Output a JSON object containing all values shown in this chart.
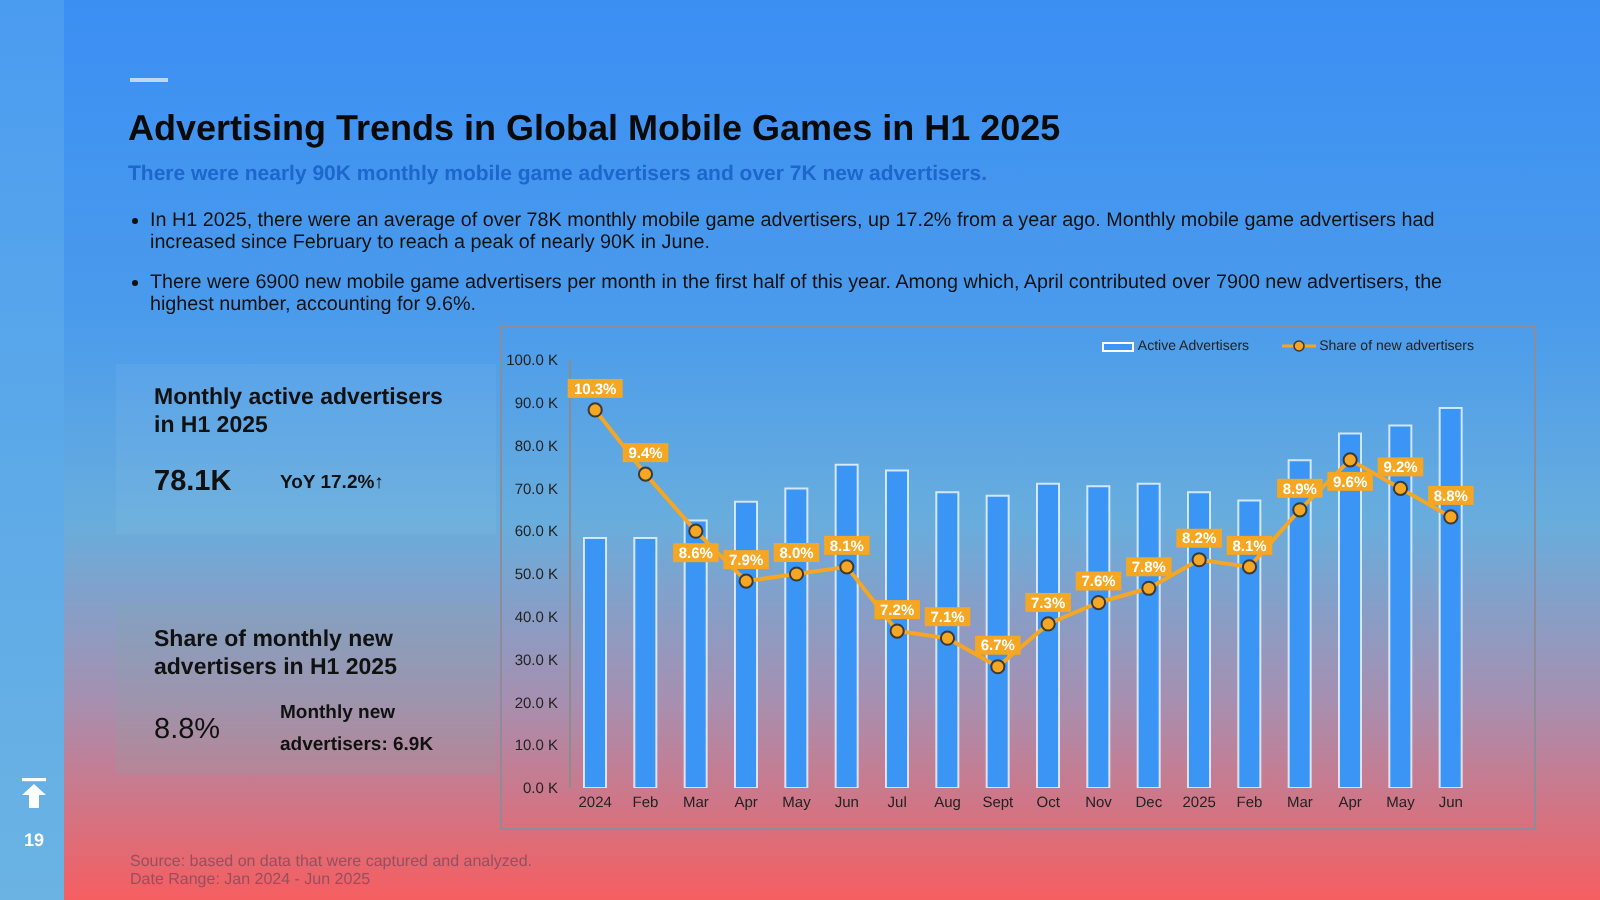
{
  "chart_data": {
    "type": "bar",
    "title": "Advertising Trends in Global Mobile Games in H1 2025",
    "subtitle": "There were nearly 90K monthly mobile game advertisers and over 7K new advertisers.",
    "categories": [
      "2024",
      "Feb",
      "Mar",
      "Apr",
      "May",
      "Jun",
      "Jul",
      "Aug",
      "Sept",
      "Oct",
      "Nov",
      "Dec",
      "2025",
      "Feb",
      "Mar",
      "Apr",
      "May",
      "Jun"
    ],
    "series": [
      {
        "name": "Active Advertisers",
        "color": "#3a95f5",
        "values": [
          58.4,
          58.4,
          62.5,
          66.9,
          70.0,
          75.5,
          74.2,
          69.1,
          68.3,
          71.1,
          70.5,
          71.1,
          69.1,
          67.2,
          76.6,
          82.8,
          84.7,
          88.8
        ]
      },
      {
        "name": "Share of new advertisers",
        "type": "line",
        "axis": "y2",
        "color": "#f5a623",
        "values": [
          10.3,
          9.4,
          8.6,
          7.9,
          8.0,
          8.1,
          7.2,
          7.1,
          6.7,
          7.3,
          7.6,
          7.8,
          8.2,
          8.1,
          8.9,
          9.6,
          9.2,
          8.8
        ],
        "value_labels": [
          "10.3%",
          "9.4%",
          "8.6%",
          "7.9%",
          "8.0%",
          "8.1%",
          "7.2%",
          "7.1%",
          "6.7%",
          "7.3%",
          "7.6%",
          "7.8%",
          "8.2%",
          "8.1%",
          "8.9%",
          "9.6%",
          "9.2%",
          "8.8%"
        ]
      }
    ],
    "ylim": [
      0,
      100
    ],
    "yticks": [
      {
        "value": 0,
        "label": "0.0 K"
      },
      {
        "value": 10,
        "label": "10.0 K"
      },
      {
        "value": 20,
        "label": "20.0 K"
      },
      {
        "value": 30,
        "label": "30.0 K"
      },
      {
        "value": 40,
        "label": "40.0 K"
      },
      {
        "value": 50,
        "label": "50.0 K"
      },
      {
        "value": 60,
        "label": "60.0 K"
      },
      {
        "value": 70,
        "label": "70.0 K"
      },
      {
        "value": 80,
        "label": "80.0 K"
      },
      {
        "value": 90,
        "label": "90.0 K"
      },
      {
        "value": 100,
        "label": "100.0 K"
      }
    ],
    "y2lim": [
      5,
      11
    ],
    "legend": "top right",
    "grid": false,
    "marker": "circle",
    "annotations": [
      "In H1 2025, there were an average of over 78K monthly mobile game advertisers, up 17.2% from a year ago. Monthly mobile game advertisers had increased since February to reach a peak of nearly 90K in June.",
      "There were 6900 new mobile game advertisers per month in the first half of this year. Among which, April contributed over 7900 new advertisers, the highest number, accounting for 9.6%.",
      "Monthly active advertisers in H1 2025",
      "78.1K",
      "YoY 17.2%↑",
      "Share of monthly new advertisers in H1 2025",
      "8.8%",
      "Monthly new advertisers: 6.9K",
      "Source: based on data that were captured and analyzed.",
      "Date Range: Jan 2024 - Jun 2025",
      "19"
    ]
  }
}
